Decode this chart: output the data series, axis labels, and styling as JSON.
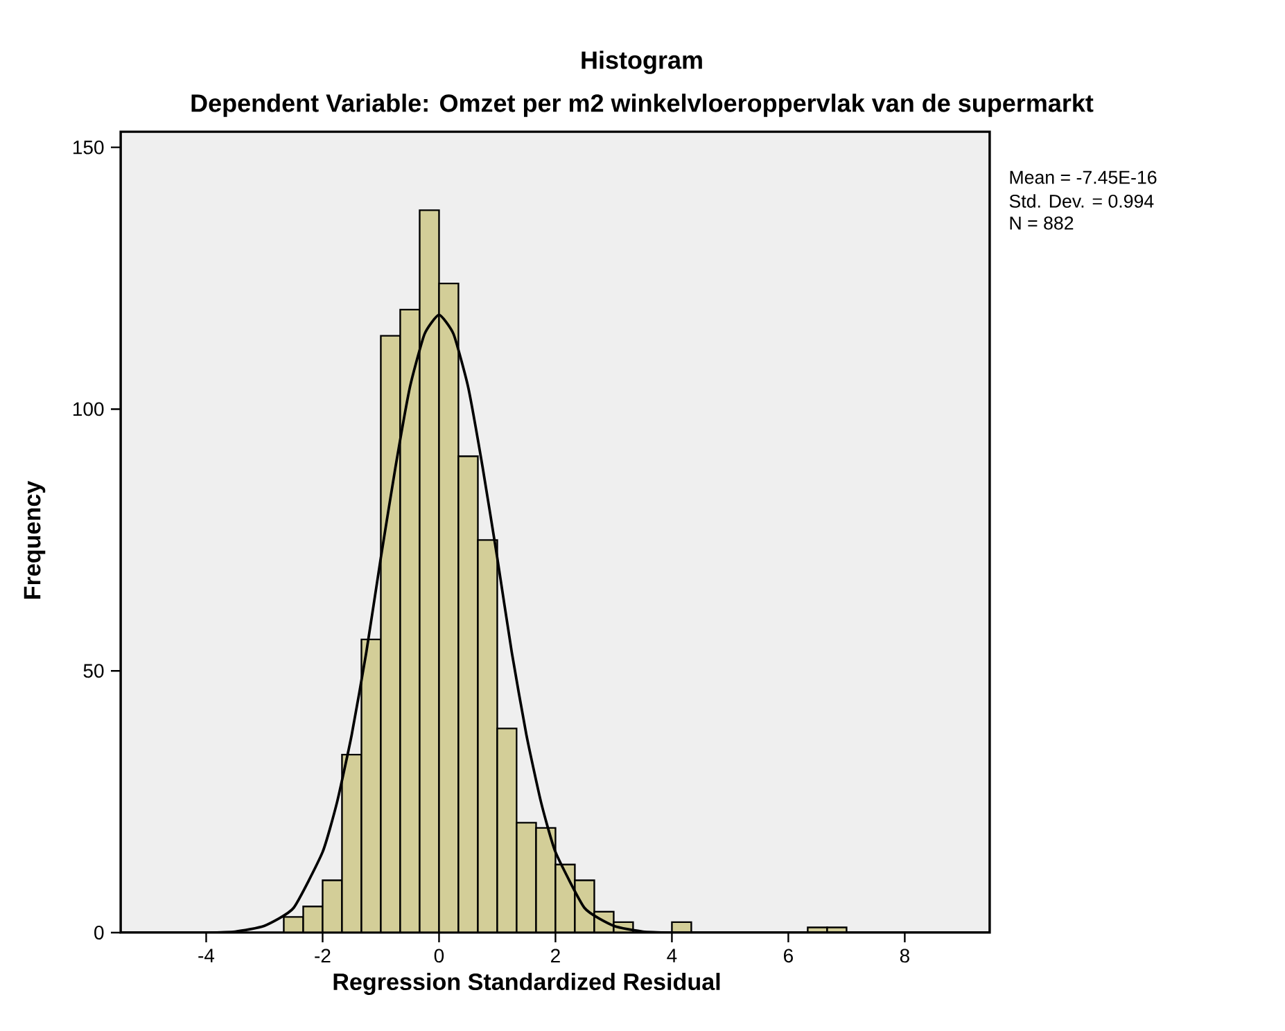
{
  "chart_data": {
    "type": "histogram",
    "title": "Histogram",
    "subtitle": "Dependent Variable: Omzet per m2 winkelvloeroppervlak van de supermarkt",
    "xlabel": "Regression Standardized Residual",
    "ylabel": "Frequency",
    "annotations": [
      "Mean = -7.45E-16",
      "Std. Dev. = 0.994",
      "N = 882"
    ],
    "series": [
      {
        "color": "#d3ce98",
        "bins": [
          -2.667,
          -2.333,
          -2.0,
          -1.667,
          -1.333,
          -1.0,
          -0.667,
          -0.333,
          0.0,
          0.333,
          0.667,
          1.0,
          1.333,
          1.667,
          2.0,
          2.333,
          2.667,
          3.0,
          3.333,
          3.667,
          4.0,
          4.333,
          4.667,
          5.0,
          5.333,
          5.667,
          6.0,
          6.333,
          6.667,
          7.0
        ],
        "values": [
          3,
          5,
          10,
          34,
          56,
          114,
          119,
          138,
          124,
          91,
          75,
          39,
          21,
          20,
          13,
          10,
          4,
          2,
          0,
          0,
          2,
          0,
          0,
          0,
          0,
          0,
          0,
          1,
          1
        ]
      },
      {
        "type": "line",
        "color": "#000000",
        "x": [
          -5.47,
          -4.5,
          -4,
          -3.5,
          -3,
          -2.5,
          -2,
          -1.75,
          -1.5,
          -1.25,
          -1,
          -0.75,
          -0.5,
          -0.25,
          0,
          0.25,
          0.5,
          0.75,
          1,
          1.25,
          1.5,
          1.75,
          2,
          2.5,
          3,
          3.5,
          4,
          4.5,
          5.5,
          9.46
        ],
        "values": [
          0,
          0,
          0,
          0.2,
          1.3,
          4.7,
          15.4,
          25,
          37.8,
          53.5,
          71.6,
          88.8,
          104.2,
          114.3,
          118,
          114.3,
          104.2,
          88.8,
          71.6,
          53.5,
          37.8,
          25,
          15.4,
          4.7,
          1.3,
          0.2,
          0,
          0,
          0,
          0
        ]
      }
    ],
    "xlim": [
      -5.47,
      9.46
    ],
    "ylim": [
      0,
      153
    ],
    "xticks": [
      -4,
      -2,
      0,
      2,
      4,
      6,
      8
    ],
    "yticks": [
      0,
      50,
      100,
      150
    ],
    "grid": false
  }
}
